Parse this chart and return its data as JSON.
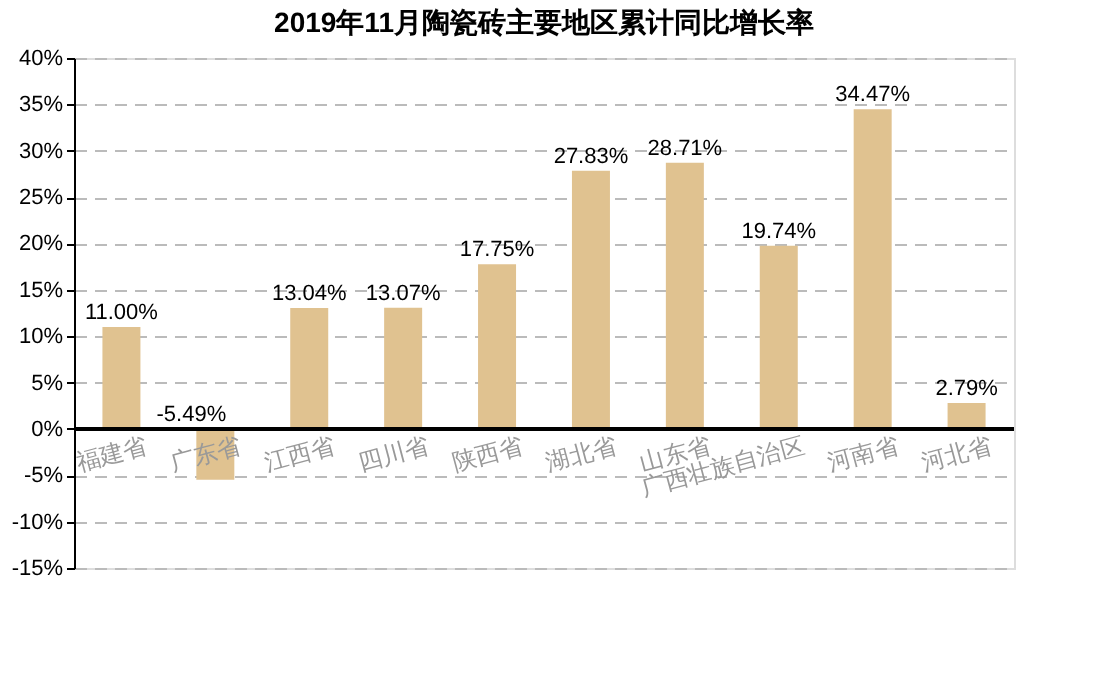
{
  "chart_data": {
    "type": "bar",
    "title": "2019年11月陶瓷砖主要地区累计同比增长率",
    "categories": [
      "福建省",
      "广东省",
      "江西省",
      "四川省",
      "陕西省",
      "湖北省",
      "山东省",
      "广西壮族自治区",
      "河南省",
      "河北省"
    ],
    "values": [
      11.0,
      -5.49,
      13.04,
      13.07,
      17.75,
      27.83,
      28.71,
      19.74,
      34.47,
      2.79
    ],
    "value_labels": [
      "11.00%",
      "-5.49%",
      "13.04%",
      "13.07%",
      "17.75%",
      "27.83%",
      "28.71%",
      "19.74%",
      "34.47%",
      "2.79%"
    ],
    "color": "#e0c290",
    "ylim": [
      -15,
      40
    ],
    "yticks": [
      {
        "value": -15,
        "label": "-15%"
      },
      {
        "value": -10,
        "label": "-10%"
      },
      {
        "value": -5,
        "label": "-5%"
      },
      {
        "value": 0,
        "label": "0%"
      },
      {
        "value": 5,
        "label": "5%"
      },
      {
        "value": 10,
        "label": "10%"
      },
      {
        "value": 15,
        "label": "15%"
      },
      {
        "value": 20,
        "label": "20%"
      },
      {
        "value": 25,
        "label": "25%"
      },
      {
        "value": 30,
        "label": "30%"
      },
      {
        "value": 35,
        "label": "35%"
      },
      {
        "value": 40,
        "label": "40%"
      }
    ],
    "grid": "y"
  }
}
